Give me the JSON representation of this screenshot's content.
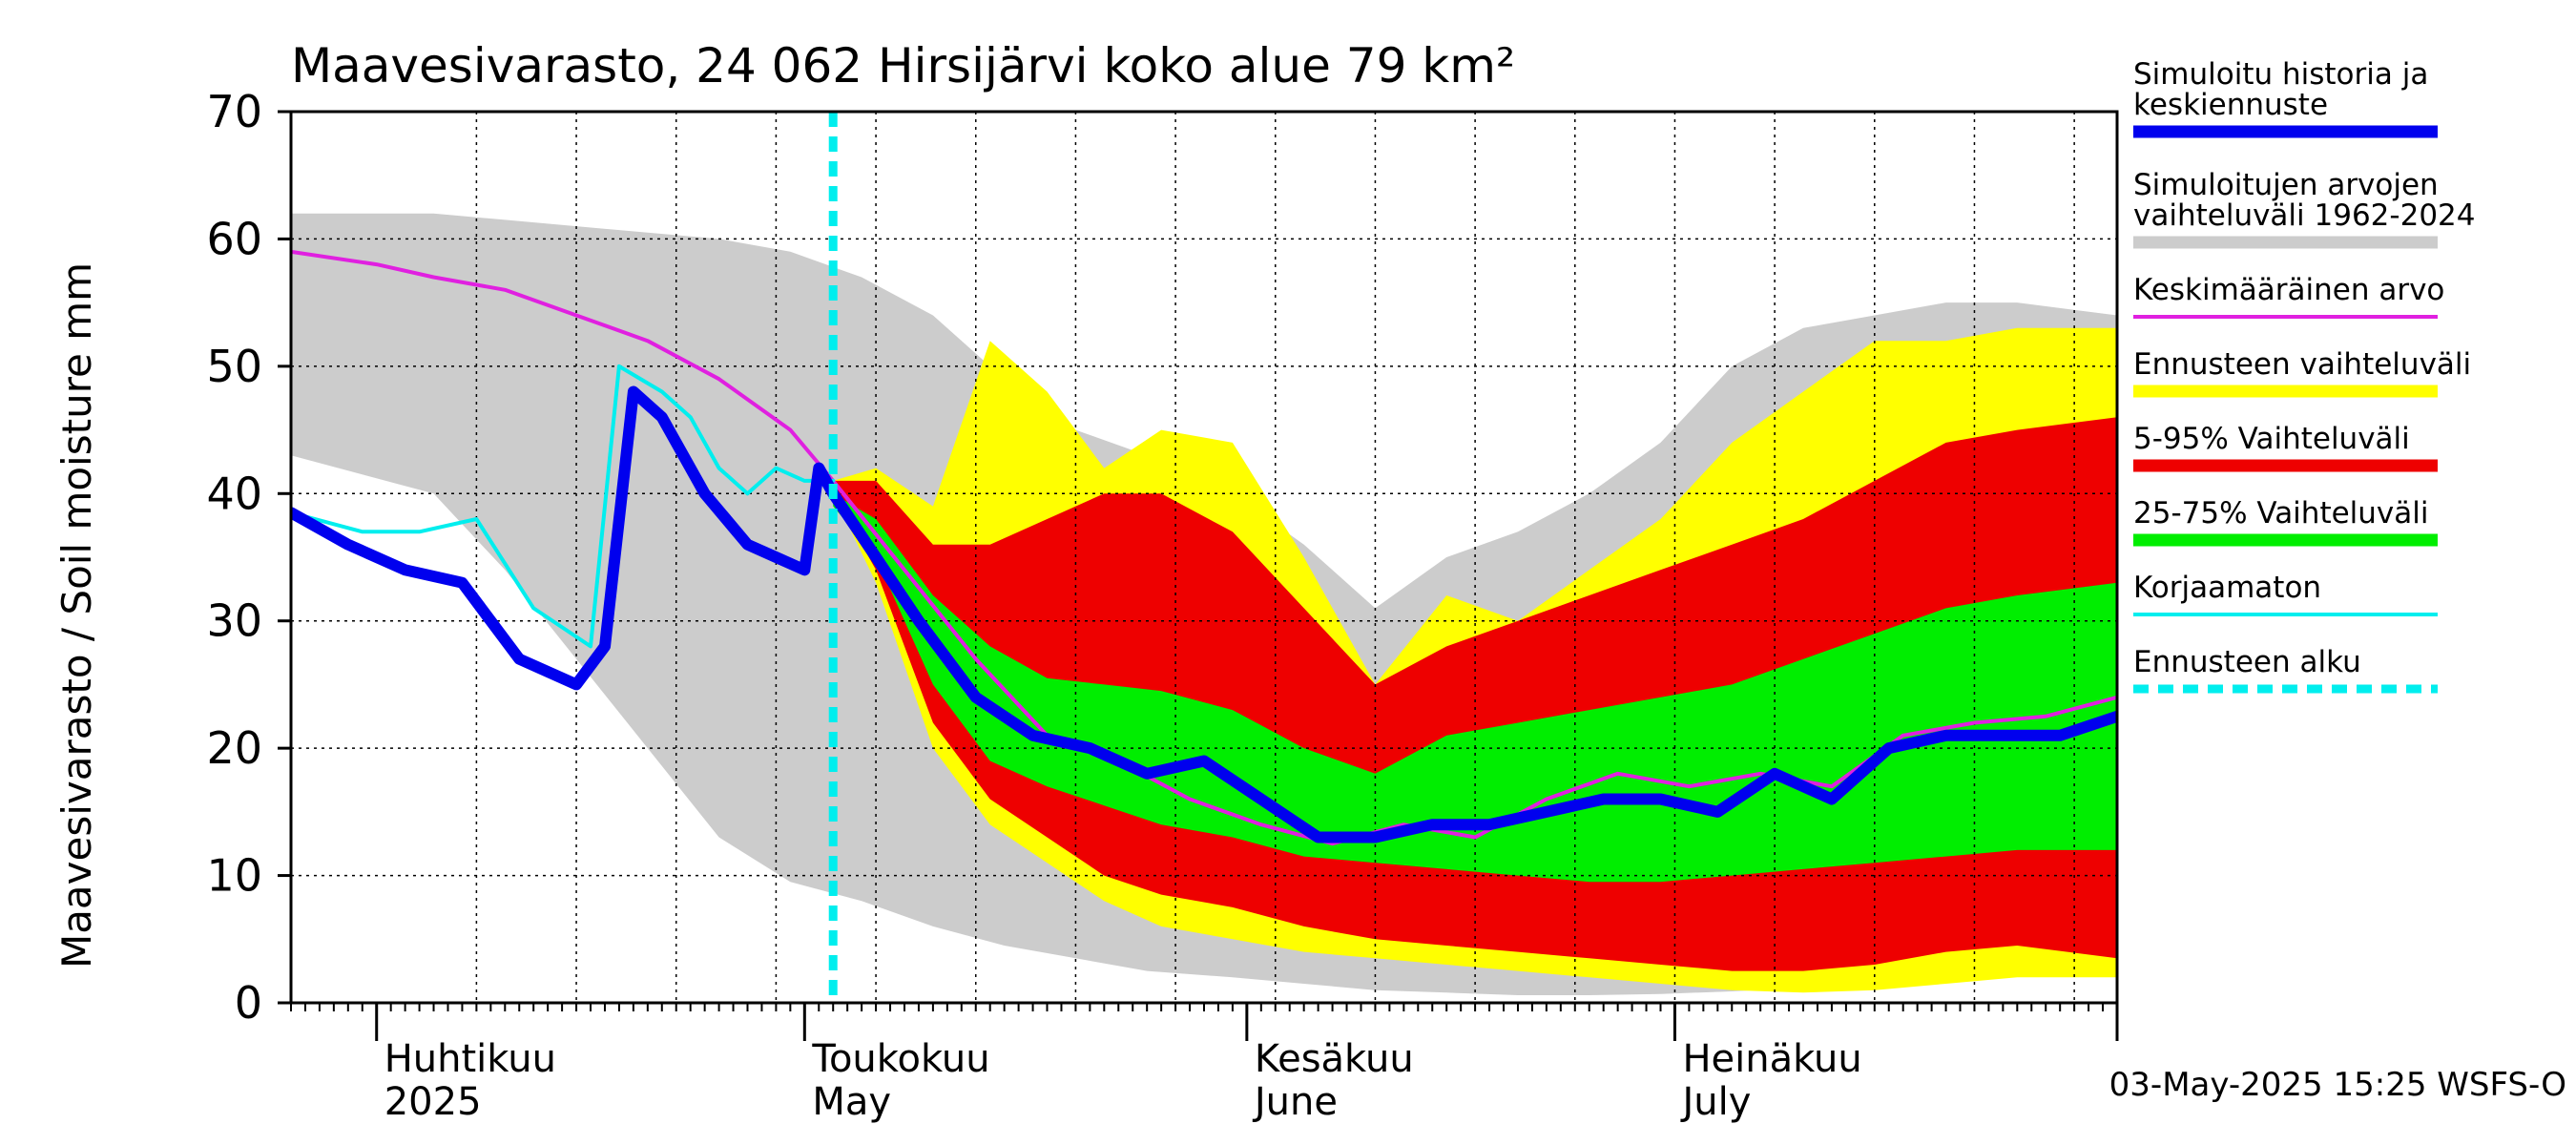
{
  "chart_data": {
    "type": "area",
    "title": "Maavesivarasto, 24 062 Hirsijärvi koko alue 79 km²",
    "ylabel": "Maavesivarasto / Soil moisture   mm",
    "ylim": [
      0,
      70
    ],
    "yticks": [
      0,
      10,
      20,
      30,
      40,
      50,
      60,
      70
    ],
    "xlim": [
      "2025-03-26",
      "2025-08-01"
    ],
    "grid": true,
    "forecast_start": "2025-05-03",
    "month_labels": [
      {
        "date": "2025-04-01",
        "top": "Huhtikuu",
        "bottom": "2025"
      },
      {
        "date": "2025-05-01",
        "top": "Toukokuu",
        "bottom": "May"
      },
      {
        "date": "2025-06-01",
        "top": "Kesäkuu",
        "bottom": "June"
      },
      {
        "date": "2025-07-01",
        "top": "Heinäkuu",
        "bottom": "July"
      }
    ],
    "legend": [
      {
        "label": "Simuloitu historia ja keskiennuste",
        "color": "#0000ee",
        "style": "thick"
      },
      {
        "label": "Simuloitujen arvojen vaihteluväli 1962-2024",
        "color": "#cccccc",
        "style": "thick"
      },
      {
        "label": "Keskimääräinen arvo",
        "color": "#e020e0",
        "style": "thin"
      },
      {
        "label": "Ennusteen vaihteluväli",
        "color": "#ffff00",
        "style": "thick"
      },
      {
        "label": "5-95% Vaihteluväli",
        "color": "#ee0000",
        "style": "thick"
      },
      {
        "label": "25-75% Vaihteluväli",
        "color": "#00ee00",
        "style": "thick"
      },
      {
        "label": "Korjaamaton",
        "color": "#00eeee",
        "style": "thin"
      },
      {
        "label": "Ennusteen alku",
        "color": "#00eeee",
        "style": "dashed"
      }
    ],
    "series": [
      {
        "name": "Simuloitujen arvojen vaihteluväli 1962-2024",
        "kind": "band",
        "color": "#cccccc",
        "x": [
          "2025-03-26",
          "2025-04-05",
          "2025-04-10",
          "2025-04-15",
          "2025-04-20",
          "2025-04-25",
          "2025-04-30",
          "2025-05-05",
          "2025-05-10",
          "2025-05-15",
          "2025-05-20",
          "2025-05-25",
          "2025-05-31",
          "2025-06-05",
          "2025-06-10",
          "2025-06-15",
          "2025-06-20",
          "2025-06-25",
          "2025-06-30",
          "2025-07-05",
          "2025-07-10",
          "2025-07-15",
          "2025-07-20",
          "2025-07-25",
          "2025-08-01"
        ],
        "upper": [
          62,
          62,
          61.5,
          61,
          60.5,
          60,
          59,
          57,
          54,
          49,
          45,
          43,
          40,
          36,
          31,
          35,
          37,
          40,
          44,
          50,
          53,
          54,
          55,
          55,
          54
        ],
        "lower": [
          43,
          40,
          34,
          27,
          20,
          13,
          9.5,
          8,
          6,
          4.5,
          3.5,
          2.5,
          2,
          1.5,
          1,
          0.8,
          0.6,
          0.6,
          0.7,
          0.9,
          1.2,
          1.6,
          2,
          2.3,
          2.5
        ]
      },
      {
        "name": "Ennusteen vaihteluväli",
        "kind": "band",
        "color": "#ffff00",
        "x": [
          "2025-05-03",
          "2025-05-06",
          "2025-05-10",
          "2025-05-14",
          "2025-05-18",
          "2025-05-22",
          "2025-05-26",
          "2025-05-31",
          "2025-06-05",
          "2025-06-10",
          "2025-06-15",
          "2025-06-20",
          "2025-06-25",
          "2025-06-30",
          "2025-07-05",
          "2025-07-10",
          "2025-07-15",
          "2025-07-20",
          "2025-07-25",
          "2025-08-01"
        ],
        "upper": [
          41,
          42,
          39,
          52,
          48,
          42,
          45,
          44,
          35,
          25,
          32,
          30,
          34,
          38,
          44,
          48,
          52,
          52,
          53,
          53
        ],
        "lower": [
          40,
          33,
          20,
          14,
          11,
          8,
          6,
          5,
          4,
          3.5,
          3,
          2.5,
          2,
          1.5,
          1,
          0.8,
          1,
          1.5,
          2,
          2
        ]
      },
      {
        "name": "5-95% Vaihteluväli",
        "kind": "band",
        "color": "#ee0000",
        "x": [
          "2025-05-03",
          "2025-05-06",
          "2025-05-10",
          "2025-05-14",
          "2025-05-18",
          "2025-05-22",
          "2025-05-26",
          "2025-05-31",
          "2025-06-05",
          "2025-06-10",
          "2025-06-15",
          "2025-06-20",
          "2025-06-25",
          "2025-06-30",
          "2025-07-05",
          "2025-07-10",
          "2025-07-15",
          "2025-07-20",
          "2025-07-25",
          "2025-08-01"
        ],
        "upper": [
          41,
          41,
          36,
          36,
          38,
          40,
          40,
          37,
          31,
          25,
          28,
          30,
          32,
          34,
          36,
          38,
          41,
          44,
          45,
          46
        ],
        "lower": [
          40,
          34,
          22,
          16,
          13,
          10,
          8.5,
          7.5,
          6,
          5,
          4.5,
          4,
          3.5,
          3,
          2.5,
          2.5,
          3,
          4,
          4.5,
          3.5
        ]
      },
      {
        "name": "25-75% Vaihteluväli",
        "kind": "band",
        "color": "#00ee00",
        "x": [
          "2025-05-03",
          "2025-05-06",
          "2025-05-10",
          "2025-05-14",
          "2025-05-18",
          "2025-05-22",
          "2025-05-26",
          "2025-05-31",
          "2025-06-05",
          "2025-06-10",
          "2025-06-15",
          "2025-06-20",
          "2025-06-25",
          "2025-06-30",
          "2025-07-05",
          "2025-07-10",
          "2025-07-15",
          "2025-07-20",
          "2025-07-25",
          "2025-08-01"
        ],
        "upper": [
          40,
          38,
          32,
          28,
          25.5,
          25,
          24.5,
          23,
          20,
          18,
          21,
          22,
          23,
          24,
          25,
          27,
          29,
          31,
          32,
          33
        ],
        "lower": [
          39,
          35,
          25,
          19,
          17,
          15.5,
          14,
          13,
          11.5,
          11,
          10.5,
          10,
          9.5,
          9.5,
          10,
          10.5,
          11,
          11.5,
          12,
          12
        ]
      },
      {
        "name": "Keskimääräinen arvo",
        "kind": "line",
        "color": "#e020e0",
        "x": [
          "2025-03-26",
          "2025-04-01",
          "2025-04-05",
          "2025-04-10",
          "2025-04-15",
          "2025-04-20",
          "2025-04-25",
          "2025-04-30",
          "2025-05-03",
          "2025-05-08",
          "2025-05-13",
          "2025-05-18",
          "2025-05-23",
          "2025-05-28",
          "2025-06-02",
          "2025-06-07",
          "2025-06-12",
          "2025-06-17",
          "2025-06-22",
          "2025-06-27",
          "2025-07-02",
          "2025-07-07",
          "2025-07-12",
          "2025-07-17",
          "2025-07-22",
          "2025-07-27",
          "2025-08-01"
        ],
        "values": [
          59,
          58,
          57,
          56,
          54,
          52,
          49,
          45,
          41,
          34,
          27,
          21,
          19,
          16,
          14,
          12.5,
          14,
          13,
          16,
          18,
          17,
          18,
          17,
          21,
          22,
          22.5,
          24
        ]
      },
      {
        "name": "Korjaamaton",
        "kind": "line",
        "color": "#00eeee",
        "x": [
          "2025-03-26",
          "2025-03-31",
          "2025-04-04",
          "2025-04-08",
          "2025-04-12",
          "2025-04-16",
          "2025-04-18",
          "2025-04-21",
          "2025-04-23",
          "2025-04-25",
          "2025-04-27",
          "2025-04-29",
          "2025-05-01",
          "2025-05-03"
        ],
        "values": [
          38.5,
          37,
          37,
          38,
          31,
          28,
          50,
          48,
          46,
          42,
          40,
          42,
          41,
          41
        ]
      },
      {
        "name": "Simuloitu historia ja keskiennuste",
        "kind": "line",
        "color": "#0000ee",
        "x": [
          "2025-03-26",
          "2025-03-30",
          "2025-04-03",
          "2025-04-07",
          "2025-04-11",
          "2025-04-15",
          "2025-04-17",
          "2025-04-19",
          "2025-04-21",
          "2025-04-24",
          "2025-04-27",
          "2025-04-29",
          "2025-05-01",
          "2025-05-02",
          "2025-05-03",
          "2025-05-06",
          "2025-05-09",
          "2025-05-13",
          "2025-05-17",
          "2025-05-21",
          "2025-05-25",
          "2025-05-29",
          "2025-06-02",
          "2025-06-06",
          "2025-06-10",
          "2025-06-14",
          "2025-06-18",
          "2025-06-22",
          "2025-06-26",
          "2025-06-30",
          "2025-07-04",
          "2025-07-08",
          "2025-07-12",
          "2025-07-16",
          "2025-07-20",
          "2025-07-24",
          "2025-07-28",
          "2025-08-01"
        ],
        "values": [
          38.5,
          36,
          34,
          33,
          27,
          25,
          28,
          48,
          46,
          40,
          36,
          35,
          34,
          42,
          40,
          35,
          30,
          24,
          21,
          20,
          18,
          19,
          16,
          13,
          13,
          14,
          14,
          15,
          16,
          16,
          15,
          18,
          16,
          20,
          21,
          21,
          21,
          22.5
        ]
      }
    ]
  },
  "footer": {
    "timestamp": "03-May-2025 15:25 WSFS-O"
  }
}
